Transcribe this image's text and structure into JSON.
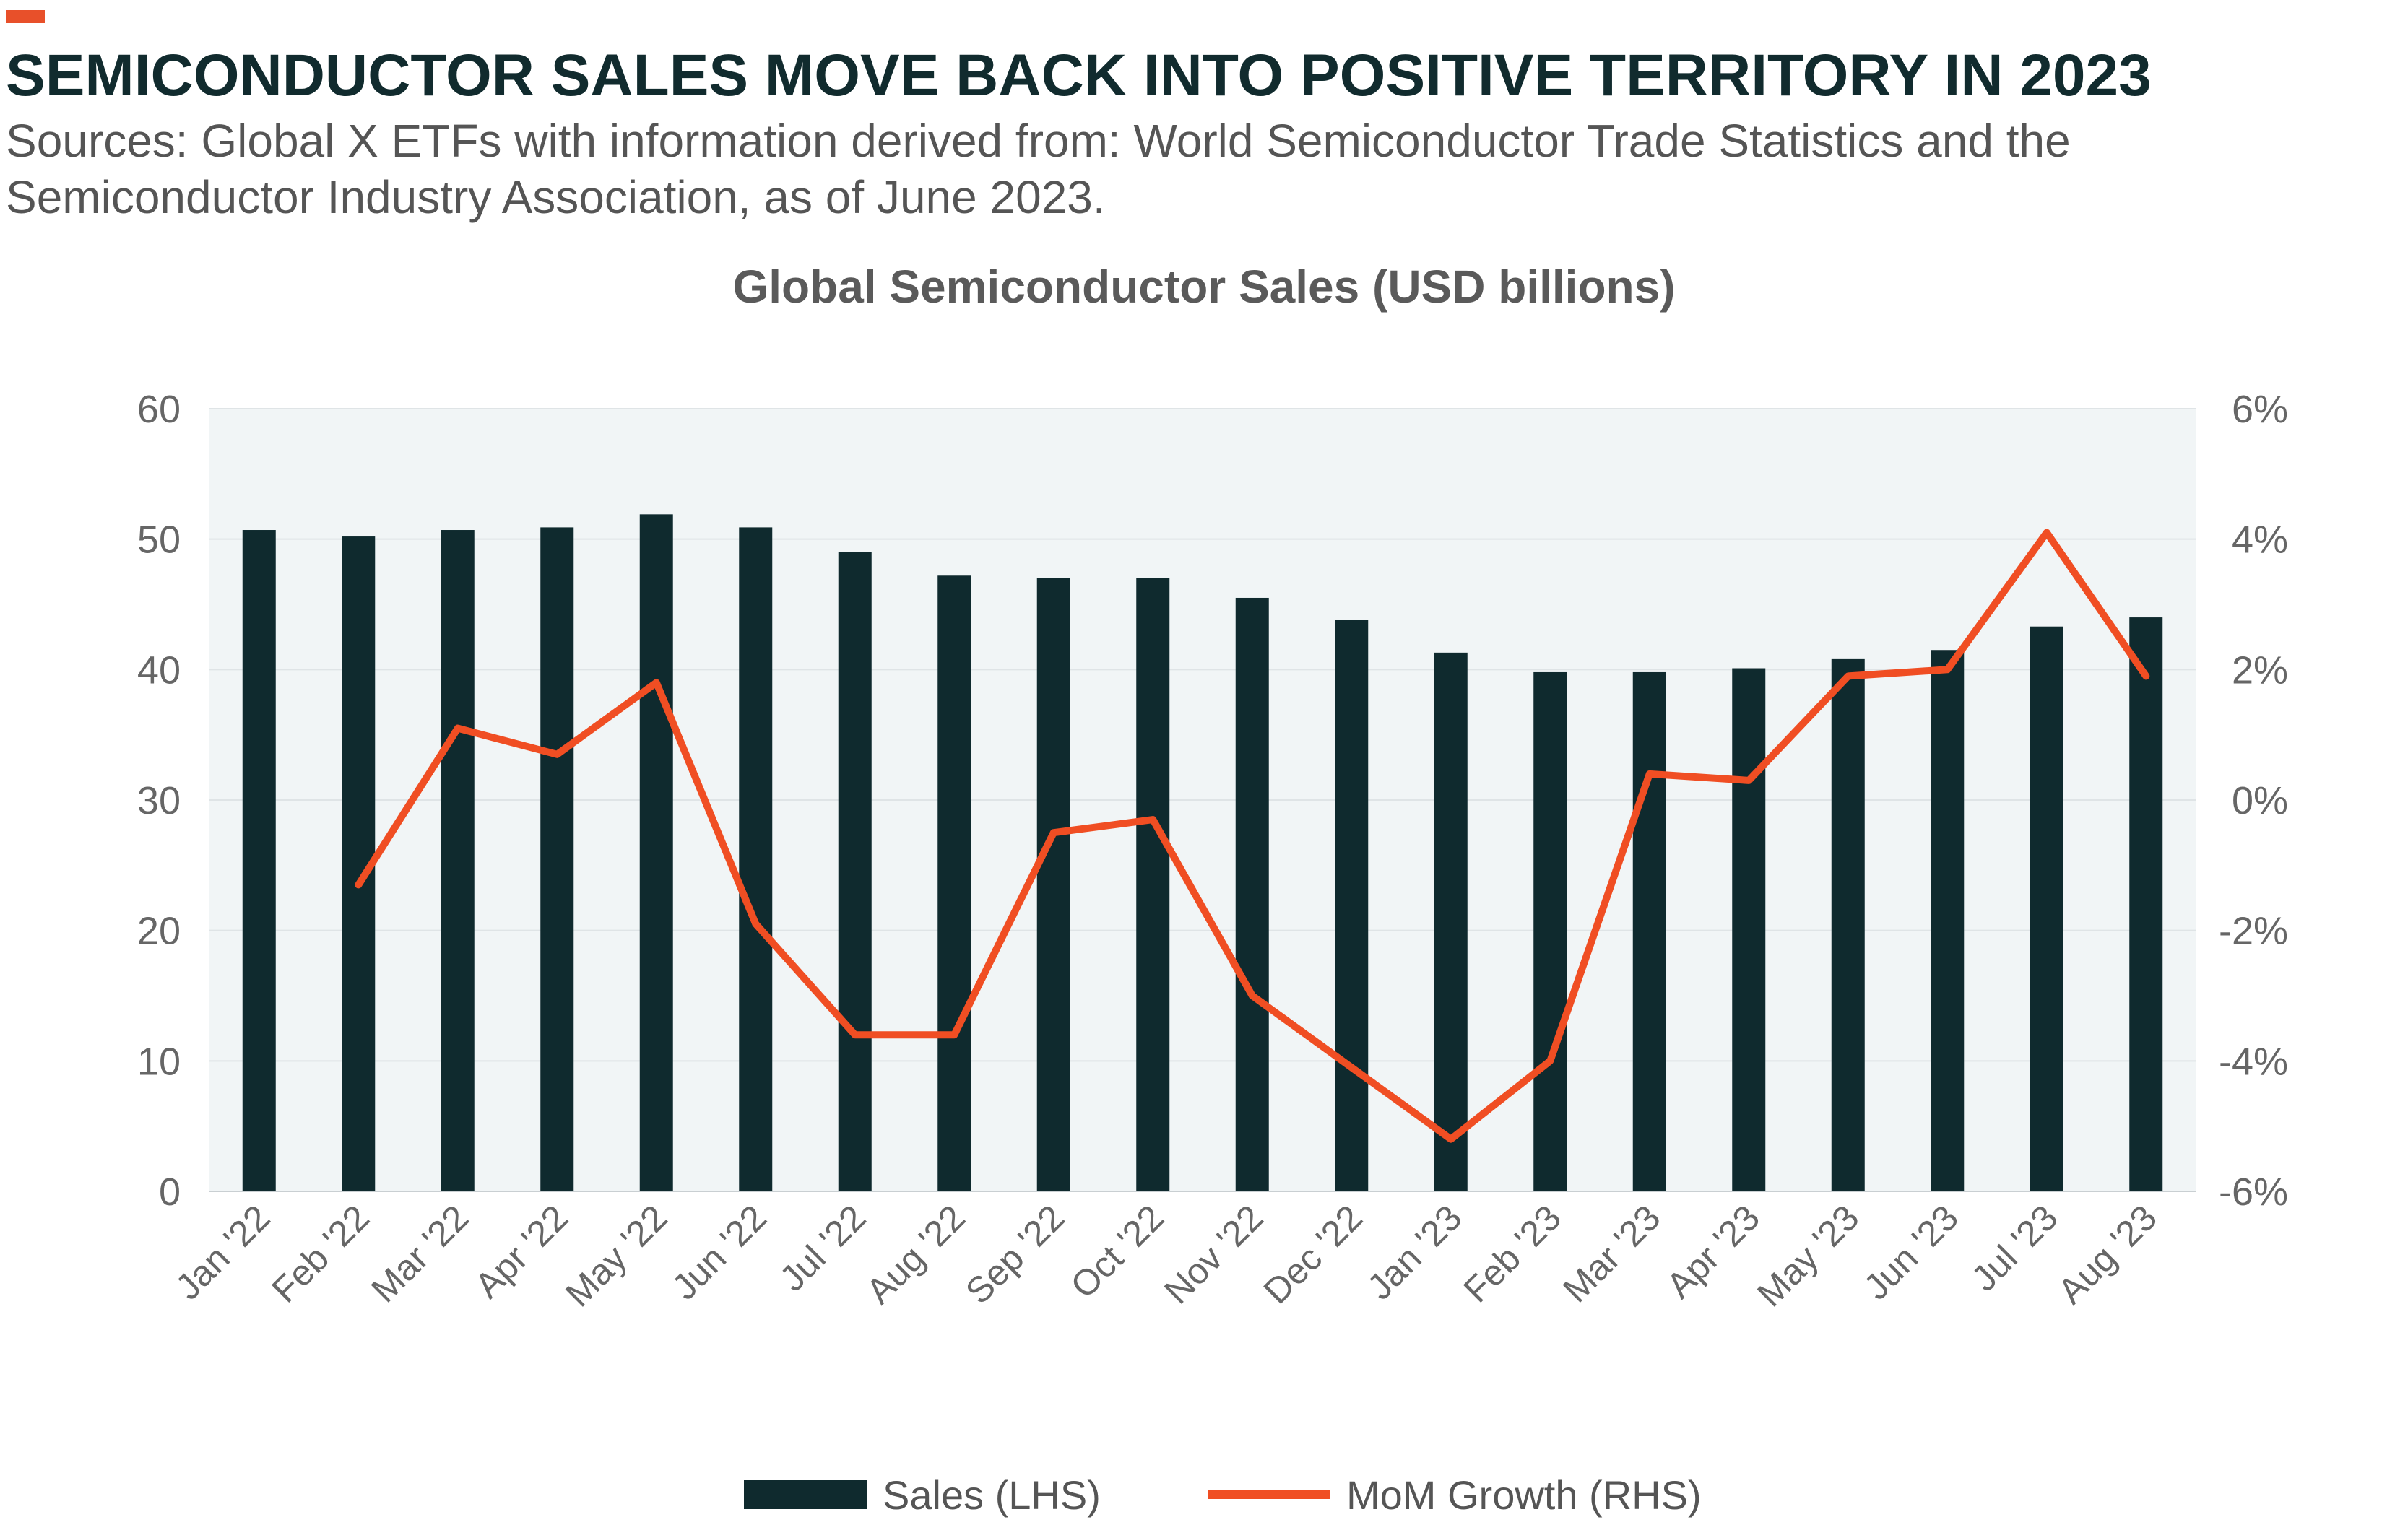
{
  "header": {
    "title": "SEMICONDUCTOR SALES MOVE BACK INTO POSITIVE TERRITORY IN 2023",
    "sources": "Sources: Global X ETFs with information derived from: World Semiconductor Trade Statistics and the Semiconductor Industry Association, as of June 2023."
  },
  "colors": {
    "accent": "#e8502a",
    "bars": "#0f2a2e",
    "line": "#f04e23",
    "plot_bg": "#f1f5f6",
    "grid": "#dfe4e6"
  },
  "chart_data": {
    "type": "bar",
    "title": "Global Semiconductor Sales (USD billions)",
    "categories": [
      "Jan '22",
      "Feb '22",
      "Mar '22",
      "Apr '22",
      "May '22",
      "Jun '22",
      "Jul '22",
      "Aug '22",
      "Sep '22",
      "Oct '22",
      "Nov '22",
      "Dec '22",
      "Jan '23",
      "Feb '23",
      "Mar '23",
      "Apr '23",
      "May '23",
      "Jun '23",
      "Jul '23",
      "Aug '23"
    ],
    "series": [
      {
        "name": "Sales (LHS)",
        "type": "bar",
        "axis": "left",
        "values": [
          50.7,
          50.2,
          50.7,
          50.9,
          51.9,
          50.9,
          49.0,
          47.2,
          47.0,
          47.0,
          45.5,
          43.8,
          41.3,
          39.8,
          39.8,
          40.1,
          40.8,
          41.5,
          43.3,
          44.0
        ]
      },
      {
        "name": "MoM Growth (RHS)",
        "type": "line",
        "axis": "right",
        "values": [
          null,
          -1.3,
          1.1,
          0.7,
          1.8,
          -1.9,
          -3.6,
          -3.6,
          -0.5,
          -0.3,
          -3.0,
          -4.1,
          -5.2,
          -4.0,
          0.4,
          0.3,
          1.9,
          2.0,
          4.1,
          1.9
        ]
      }
    ],
    "y_left": {
      "ylim": [
        0,
        60
      ],
      "ticks": [
        0,
        10,
        20,
        30,
        40,
        50,
        60
      ],
      "tick_labels": [
        "0",
        "10",
        "20",
        "30",
        "40",
        "50",
        "60"
      ]
    },
    "y_right": {
      "ylim": [
        -6,
        6
      ],
      "ticks": [
        -6,
        -4,
        -2,
        0,
        2,
        4,
        6
      ],
      "tick_labels": [
        "-6%",
        "-4%",
        "-2%",
        "0%",
        "2%",
        "4%",
        "6%"
      ]
    },
    "grid": true,
    "legend": "bottom-center"
  }
}
